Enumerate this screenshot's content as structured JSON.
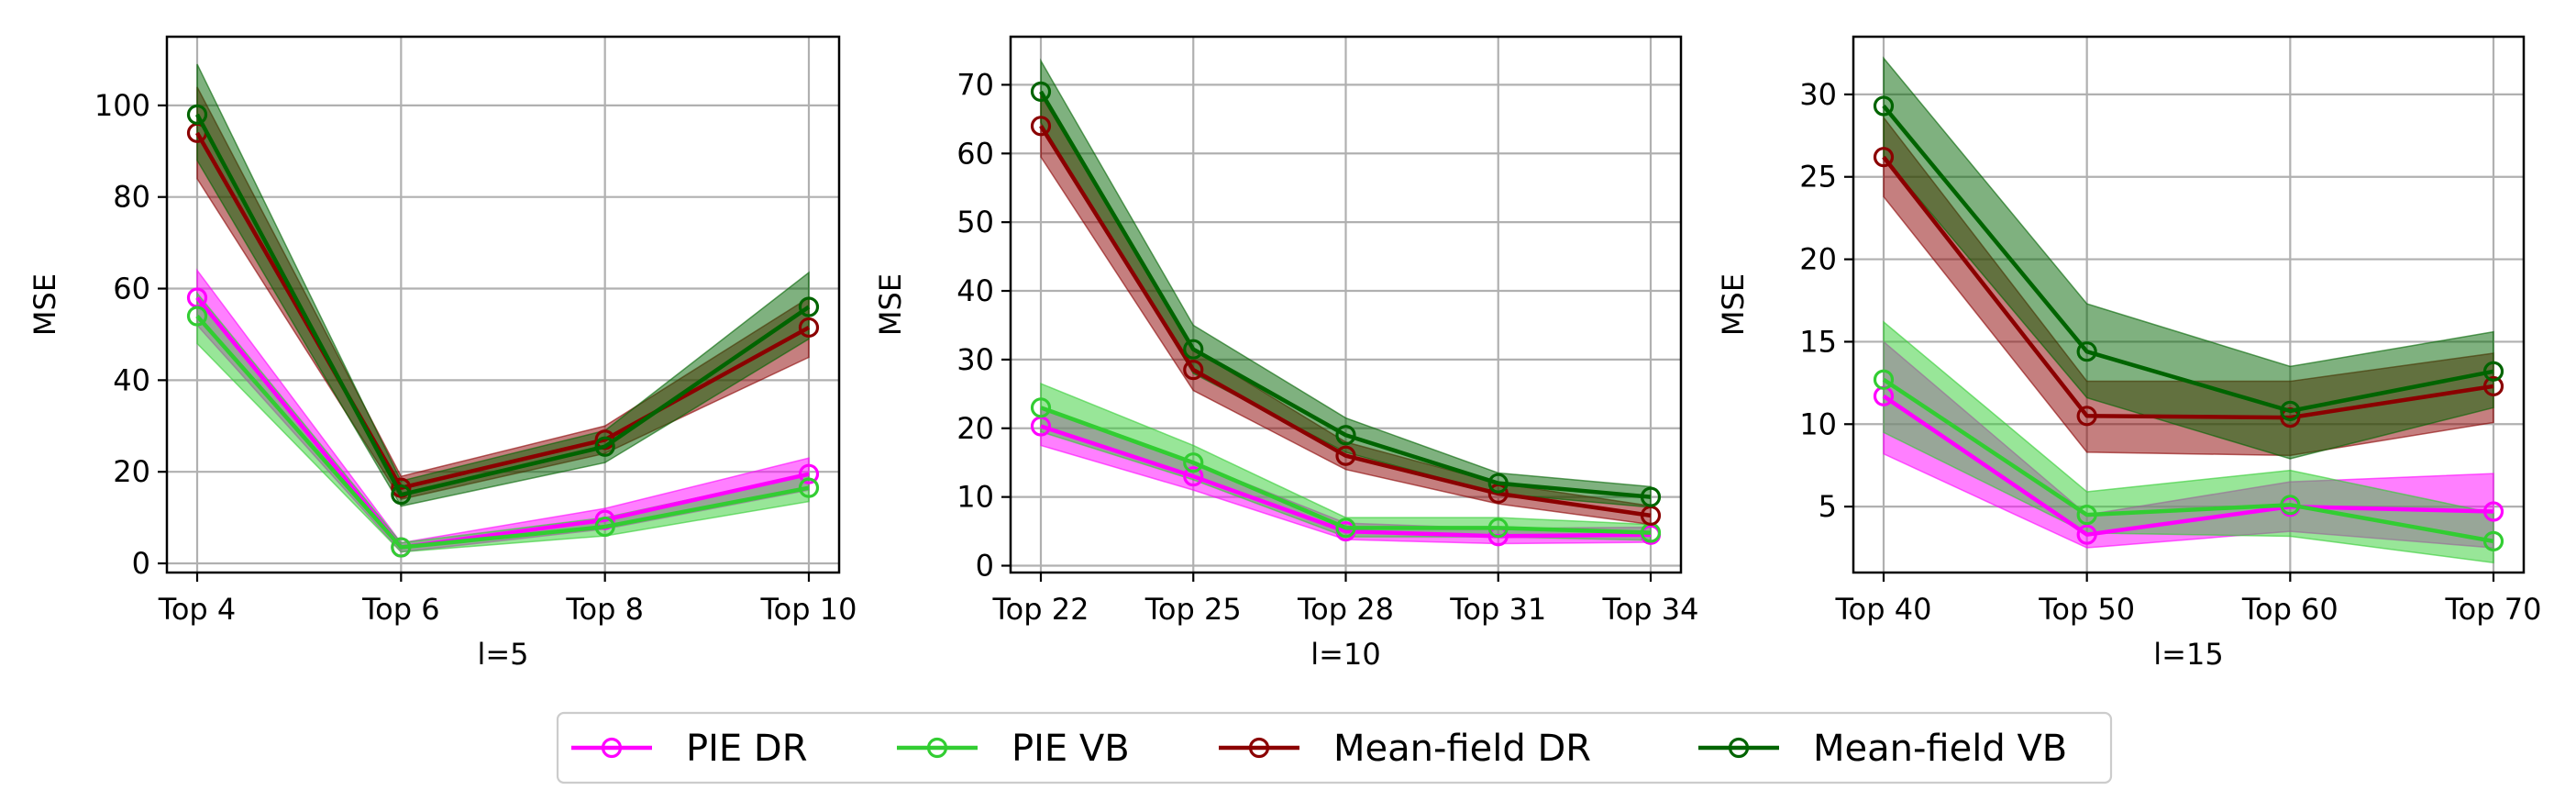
{
  "chart_data": [
    {
      "type": "line",
      "xlabel": "l=5",
      "ylabel": "MSE",
      "categories": [
        "Top 4",
        "Top 6",
        "Top 8",
        "Top 10"
      ],
      "ylim": [
        -2,
        115
      ],
      "yticks": [
        0,
        20,
        40,
        60,
        80,
        100
      ],
      "grid": true,
      "series": [
        {
          "name": "PIE DR",
          "values": [
            58,
            3.5,
            9.5,
            19.5
          ],
          "lower": [
            52,
            2.5,
            7.5,
            16
          ],
          "upper": [
            64,
            4.5,
            12,
            23
          ]
        },
        {
          "name": "PIE VB",
          "values": [
            54,
            3.5,
            8,
            16.5
          ],
          "lower": [
            48,
            2.5,
            6,
            13.5
          ],
          "upper": [
            59,
            4.5,
            10,
            19.5
          ]
        },
        {
          "name": "Mean-field DR",
          "values": [
            94,
            16.5,
            27,
            51.5
          ],
          "lower": [
            84,
            14,
            24,
            45
          ],
          "upper": [
            104,
            19,
            30,
            58
          ]
        },
        {
          "name": "Mean-field VB",
          "values": [
            98,
            15,
            25.5,
            56
          ],
          "lower": [
            88,
            12.5,
            22,
            49
          ],
          "upper": [
            109,
            18,
            29,
            63.5
          ]
        }
      ]
    },
    {
      "type": "line",
      "xlabel": "l=10",
      "ylabel": "MSE",
      "categories": [
        "Top 22",
        "Top 25",
        "Top 28",
        "Top 31",
        "Top 34"
      ],
      "ylim": [
        -1,
        77
      ],
      "yticks": [
        0,
        10,
        20,
        30,
        40,
        50,
        60,
        70
      ],
      "grid": true,
      "series": [
        {
          "name": "PIE DR",
          "values": [
            20.3,
            13,
            5,
            4.3,
            4.5
          ],
          "lower": [
            17.5,
            11,
            3.8,
            3.2,
            3.4
          ],
          "upper": [
            23,
            15,
            6.2,
            5.4,
            5.6
          ]
        },
        {
          "name": "PIE VB",
          "values": [
            23,
            15,
            5.5,
            5.5,
            4.8
          ],
          "lower": [
            19.5,
            12.5,
            4.2,
            4.2,
            3.7
          ],
          "upper": [
            26.5,
            17.5,
            7,
            7,
            6
          ]
        },
        {
          "name": "Mean-field DR",
          "values": [
            64,
            28.5,
            16,
            10.5,
            7.3
          ],
          "lower": [
            59.5,
            25.5,
            14,
            9,
            6
          ],
          "upper": [
            68.5,
            31.5,
            18,
            12,
            8.7
          ]
        },
        {
          "name": "Mean-field VB",
          "values": [
            69,
            31.5,
            19,
            12,
            10
          ],
          "lower": [
            64.5,
            28,
            16.5,
            10.5,
            8.5
          ],
          "upper": [
            73.5,
            35,
            21.5,
            13.5,
            11.5
          ]
        }
      ]
    },
    {
      "type": "line",
      "xlabel": "l=15",
      "ylabel": "MSE",
      "categories": [
        "Top 40",
        "Top 50",
        "Top 60",
        "Top 70"
      ],
      "ylim": [
        1,
        33.5
      ],
      "yticks": [
        5,
        10,
        15,
        20,
        25,
        30
      ],
      "grid": true,
      "series": [
        {
          "name": "PIE DR",
          "values": [
            11.7,
            3.3,
            5,
            4.7
          ],
          "lower": [
            8.2,
            2.5,
            3.5,
            2.5
          ],
          "upper": [
            15,
            4.5,
            6.5,
            7
          ]
        },
        {
          "name": "PIE VB",
          "values": [
            12.7,
            4.5,
            5.1,
            2.9
          ],
          "lower": [
            9.5,
            3.4,
            3.2,
            1.6
          ],
          "upper": [
            16.2,
            5.9,
            7.2,
            4.6
          ]
        },
        {
          "name": "Mean-field DR",
          "values": [
            26.2,
            10.5,
            10.4,
            12.3
          ],
          "lower": [
            23.8,
            8.3,
            8.1,
            10.1
          ],
          "upper": [
            28.6,
            12.6,
            12.6,
            14.3
          ]
        },
        {
          "name": "Mean-field VB",
          "values": [
            29.3,
            14.4,
            10.8,
            13.2
          ],
          "lower": [
            26.2,
            11.6,
            7.9,
            11.0
          ],
          "upper": [
            32.2,
            17.3,
            13.5,
            15.6
          ]
        }
      ]
    }
  ],
  "legend": {
    "placement": "bottom-center",
    "items": [
      {
        "label": "PIE DR",
        "color": "#ff00ff"
      },
      {
        "label": "PIE VB",
        "color": "#32cd32"
      },
      {
        "label": "Mean-field DR",
        "color": "#8b0000"
      },
      {
        "label": "Mean-field VB",
        "color": "#006400"
      }
    ]
  },
  "colors": {
    "PIE DR": "#ff00ff",
    "PIE VB": "#32cd32",
    "Mean-field DR": "#8b0000",
    "Mean-field VB": "#006400"
  }
}
